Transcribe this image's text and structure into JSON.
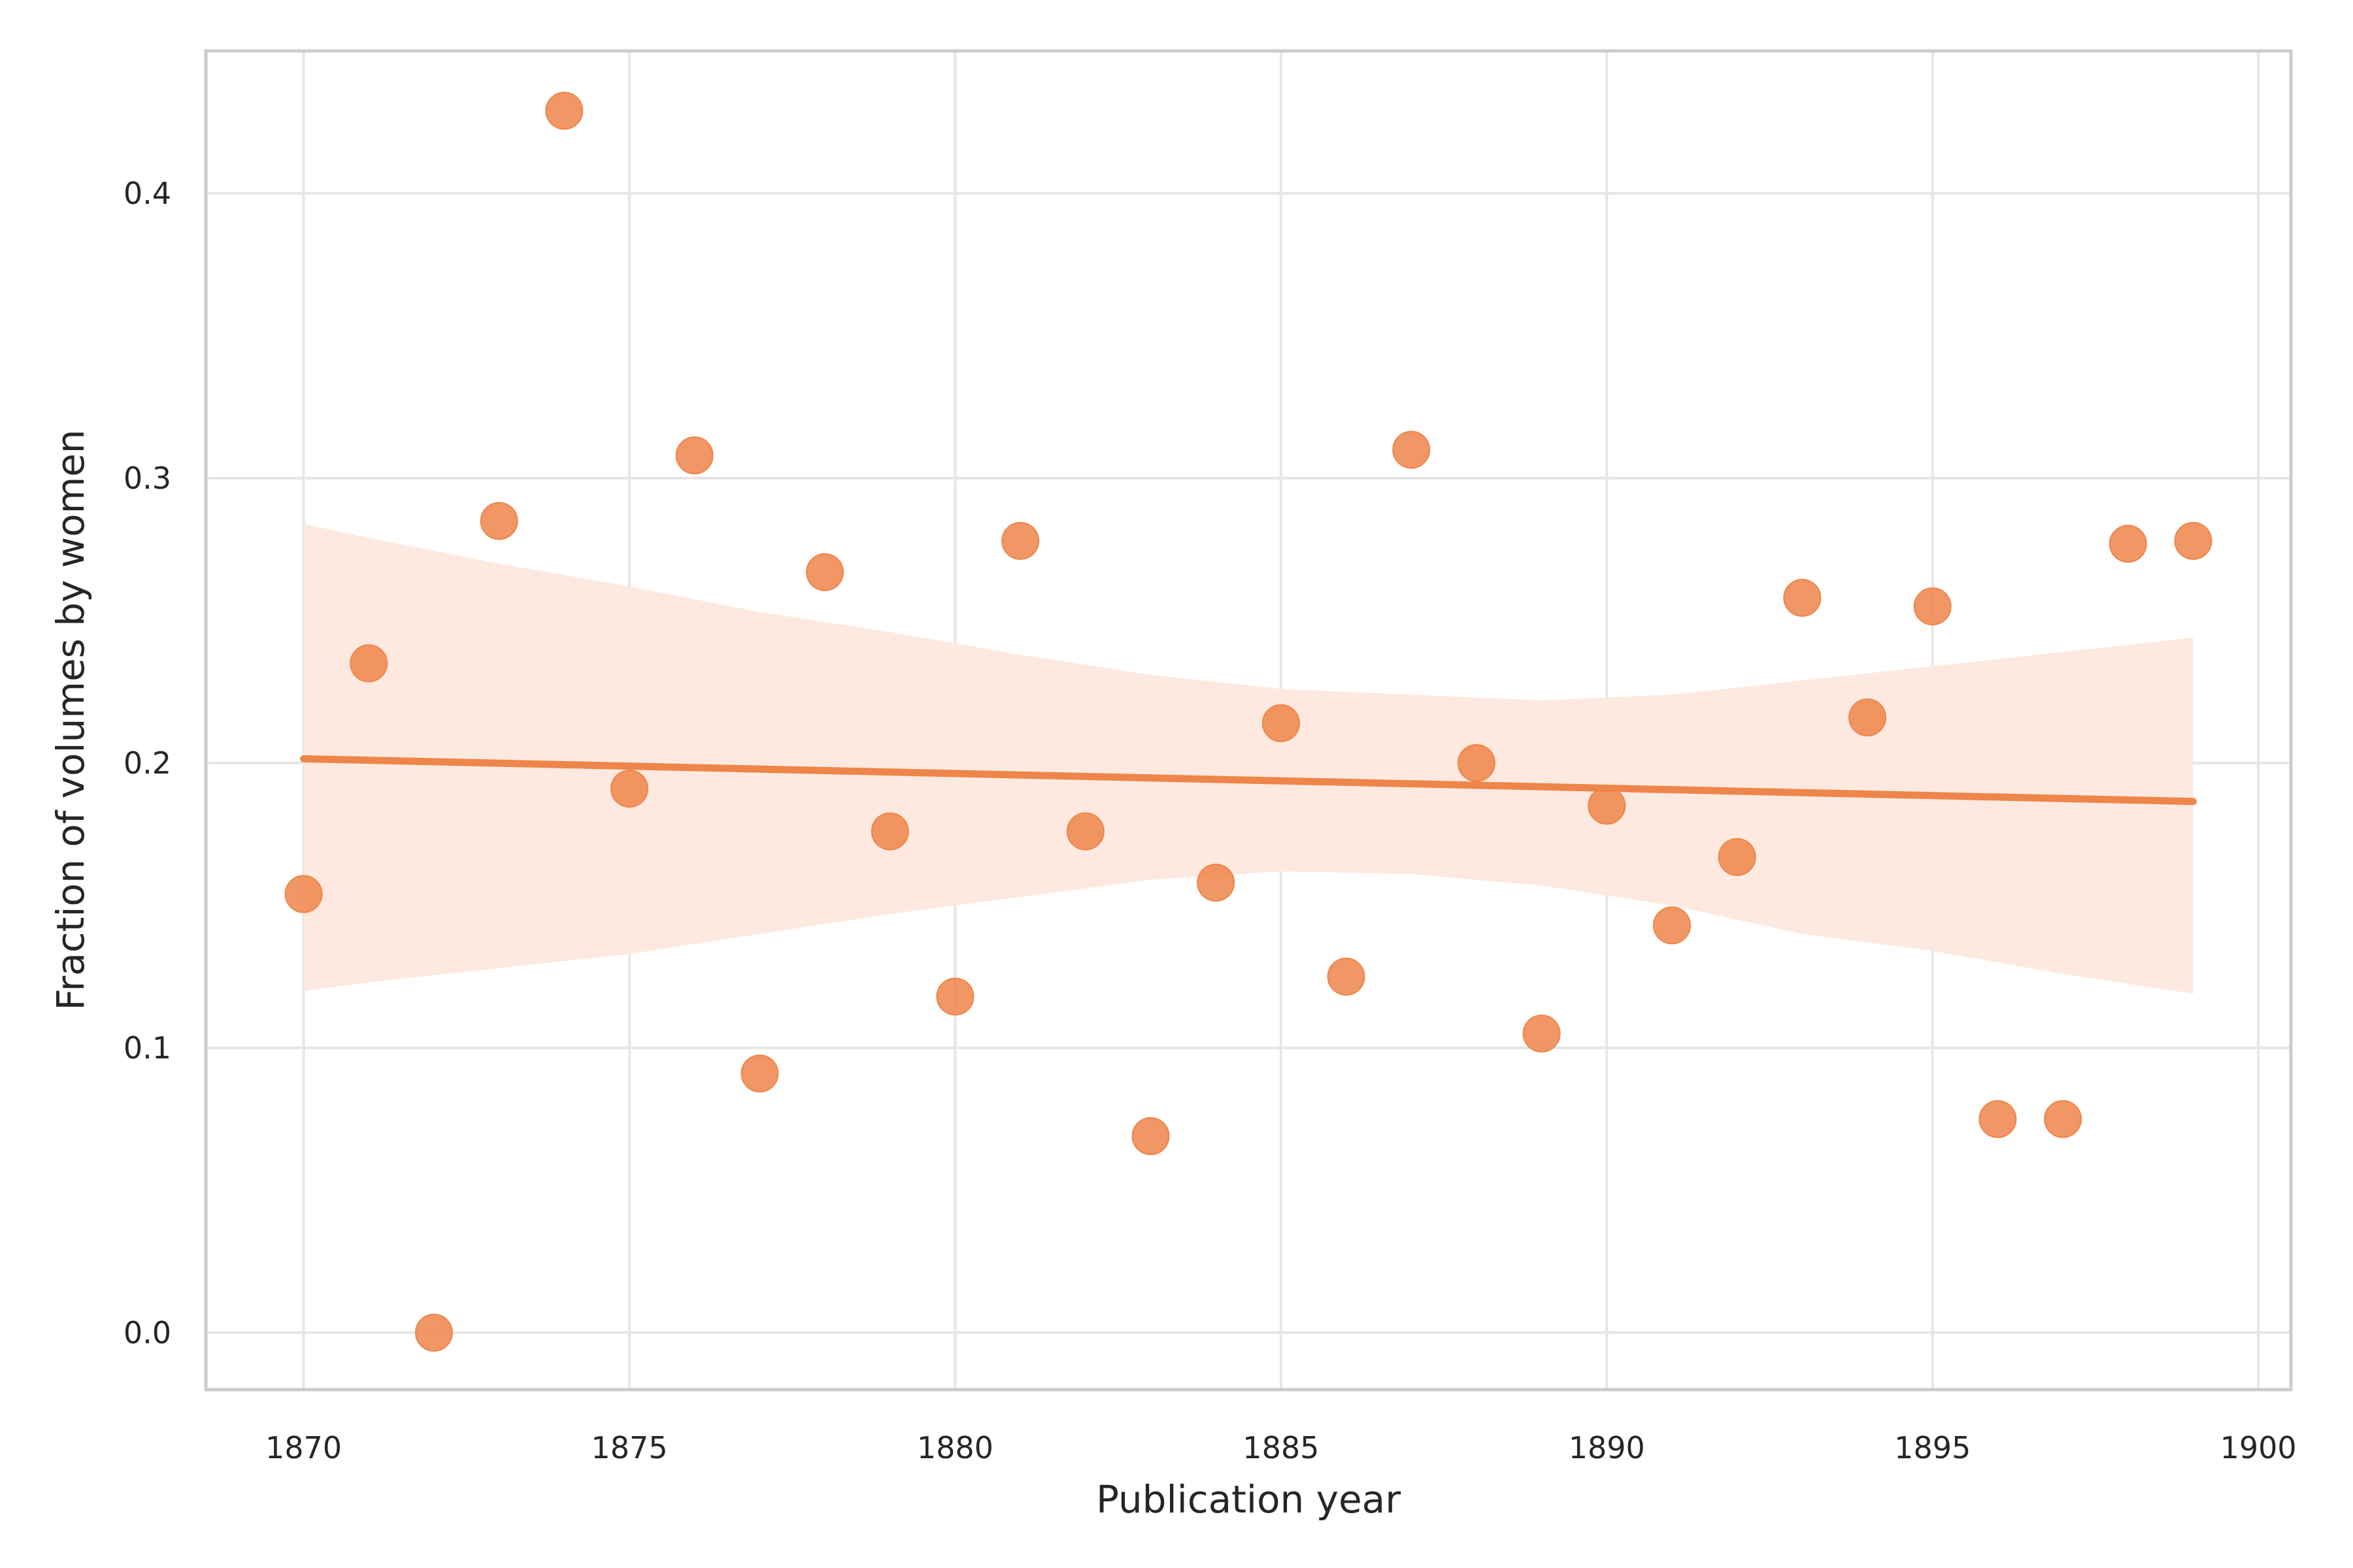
{
  "chart_data": {
    "type": "scatter",
    "title": "",
    "xlabel": "Publication year",
    "ylabel": "Fraction of volumes by women",
    "xlim": [
      1868.5,
      1900.5
    ],
    "ylim": [
      -0.02,
      0.45
    ],
    "xticks": [
      1870,
      1875,
      1880,
      1885,
      1890,
      1895,
      1900
    ],
    "yticks": [
      0.0,
      0.1,
      0.2,
      0.3,
      0.4
    ],
    "ytick_labels": [
      "0.0",
      "0.1",
      "0.2",
      "0.3",
      "0.4"
    ],
    "grid": true,
    "legend": "none",
    "colors": {
      "points": "#ee854a",
      "fit_line": "#ee854a",
      "band": "#fde9df",
      "grid": "#e6e6e6",
      "frame": "#cccccc"
    },
    "points": [
      {
        "x": 1870,
        "y": 0.154
      },
      {
        "x": 1871,
        "y": 0.235
      },
      {
        "x": 1872,
        "y": 0.0
      },
      {
        "x": 1873,
        "y": 0.285
      },
      {
        "x": 1874,
        "y": 0.429
      },
      {
        "x": 1875,
        "y": 0.191
      },
      {
        "x": 1876,
        "y": 0.308
      },
      {
        "x": 1877,
        "y": 0.091
      },
      {
        "x": 1878,
        "y": 0.267
      },
      {
        "x": 1879,
        "y": 0.176
      },
      {
        "x": 1880,
        "y": 0.118
      },
      {
        "x": 1881,
        "y": 0.278
      },
      {
        "x": 1882,
        "y": 0.176
      },
      {
        "x": 1883,
        "y": 0.069
      },
      {
        "x": 1884,
        "y": 0.158
      },
      {
        "x": 1885,
        "y": 0.214
      },
      {
        "x": 1886,
        "y": 0.125
      },
      {
        "x": 1887,
        "y": 0.31
      },
      {
        "x": 1888,
        "y": 0.2
      },
      {
        "x": 1889,
        "y": 0.105
      },
      {
        "x": 1890,
        "y": 0.185
      },
      {
        "x": 1891,
        "y": 0.143
      },
      {
        "x": 1892,
        "y": 0.167
      },
      {
        "x": 1893,
        "y": 0.258
      },
      {
        "x": 1894,
        "y": 0.216
      },
      {
        "x": 1895,
        "y": 0.255
      },
      {
        "x": 1896,
        "y": 0.075
      },
      {
        "x": 1897,
        "y": 0.075
      },
      {
        "x": 1898,
        "y": 0.277
      },
      {
        "x": 1899,
        "y": 0.278
      }
    ],
    "regression": {
      "x": [
        1870,
        1899
      ],
      "y": [
        0.2015,
        0.1865
      ]
    },
    "confidence_band": {
      "x": [
        1870,
        1871,
        1873,
        1875,
        1877,
        1879,
        1881,
        1883,
        1885,
        1887,
        1889,
        1891,
        1893,
        1895,
        1897,
        1899
      ],
      "upper": [
        0.284,
        0.279,
        0.27,
        0.262,
        0.253,
        0.246,
        0.238,
        0.231,
        0.226,
        0.224,
        0.222,
        0.224,
        0.229,
        0.234,
        0.239,
        0.244
      ],
      "lower": [
        0.12,
        0.123,
        0.128,
        0.133,
        0.14,
        0.147,
        0.153,
        0.159,
        0.162,
        0.161,
        0.157,
        0.15,
        0.14,
        0.134,
        0.126,
        0.119
      ]
    }
  }
}
